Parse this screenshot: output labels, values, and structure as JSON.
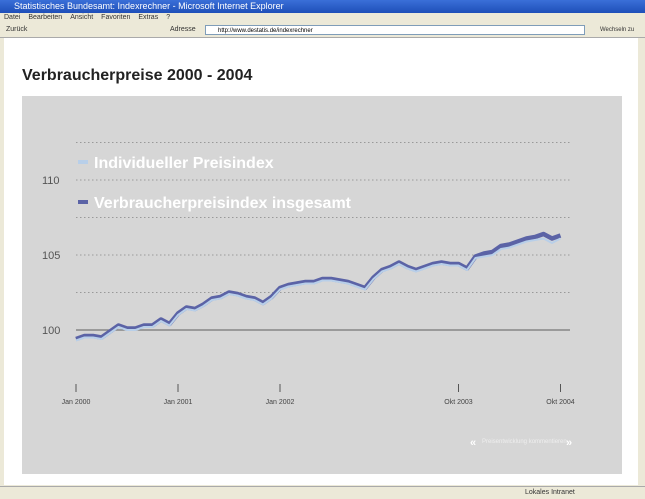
{
  "window": {
    "title": "Statistisches Bundesamt: Indexrechner - Microsoft Internet Explorer",
    "menu": [
      "Datei",
      "Bearbeiten",
      "Ansicht",
      "Favoriten",
      "Extras",
      "?"
    ],
    "toolbar": {
      "back": "Zurück",
      "address_label": "Adresse",
      "url": "http://www.destatis.de/indexrechner",
      "go": "Wechseln zu"
    },
    "status": "Lokales Intranet"
  },
  "page": {
    "nav": {
      "prev": "«",
      "text": "Preisentwicklung kommentieren",
      "next": "»"
    }
  },
  "chart_data": {
    "type": "line",
    "title": "Verbraucherpreise 2000 - 2004",
    "categories": [
      "Jan 2000",
      null,
      null,
      null,
      null,
      null,
      null,
      null,
      null,
      null,
      null,
      null,
      "Jan 2001",
      null,
      null,
      null,
      null,
      null,
      null,
      null,
      null,
      null,
      null,
      null,
      "Jan 2002",
      null,
      null,
      null,
      null,
      null,
      null,
      null,
      null,
      null,
      null,
      null,
      null,
      null,
      null,
      null,
      null,
      null,
      null,
      null,
      null,
      "Okt 2003",
      null,
      null,
      null,
      null,
      null,
      null,
      null,
      null,
      null,
      null,
      null,
      "Okt 2004"
    ],
    "series": [
      {
        "name": "Individueller Preisindex",
        "color": "#b8cfe9",
        "values": [
          99.3,
          99.5,
          99.5,
          99.4,
          99.8,
          100.2,
          100.0,
          100.0,
          100.2,
          100.2,
          100.6,
          100.3,
          101.0,
          101.4,
          101.3,
          101.6,
          102.0,
          102.1,
          102.4,
          102.3,
          102.1,
          102.0,
          101.7,
          102.1,
          102.7,
          102.9,
          103.0,
          103.1,
          103.1,
          103.3,
          103.3,
          103.2,
          103.1,
          102.9,
          102.7,
          103.4,
          103.9,
          104.1,
          104.4,
          104.1,
          103.9,
          104.1,
          104.3,
          104.4,
          104.3,
          104.3,
          104.0,
          104.8,
          104.9,
          105.0,
          105.4,
          105.5,
          105.7,
          105.9,
          106.0,
          106.1,
          105.8,
          106.1
        ]
      },
      {
        "name": "Verbraucherpreisindex insgesamt",
        "color": "#5b63a6",
        "values": [
          99.4,
          99.6,
          99.6,
          99.5,
          99.9,
          100.3,
          100.1,
          100.1,
          100.3,
          100.3,
          100.7,
          100.4,
          101.1,
          101.5,
          101.4,
          101.7,
          102.1,
          102.2,
          102.5,
          102.4,
          102.2,
          102.1,
          101.8,
          102.2,
          102.8,
          103.0,
          103.1,
          103.2,
          103.2,
          103.4,
          103.4,
          103.3,
          103.2,
          103.0,
          102.8,
          103.5,
          104.0,
          104.2,
          104.5,
          104.2,
          104.0,
          104.2,
          104.4,
          104.5,
          104.4,
          104.4,
          104.1,
          104.9,
          105.1,
          105.2,
          105.6,
          105.7,
          105.9,
          106.1,
          106.2,
          106.4,
          106.1,
          106.3
        ]
      }
    ],
    "ylim": [
      99,
      113
    ],
    "yticks": [
      100,
      105,
      110
    ],
    "dotted_gridlines": [
      102.5,
      105,
      107.5,
      110,
      112.5
    ],
    "reference_line": 100,
    "legend": "top-left"
  }
}
